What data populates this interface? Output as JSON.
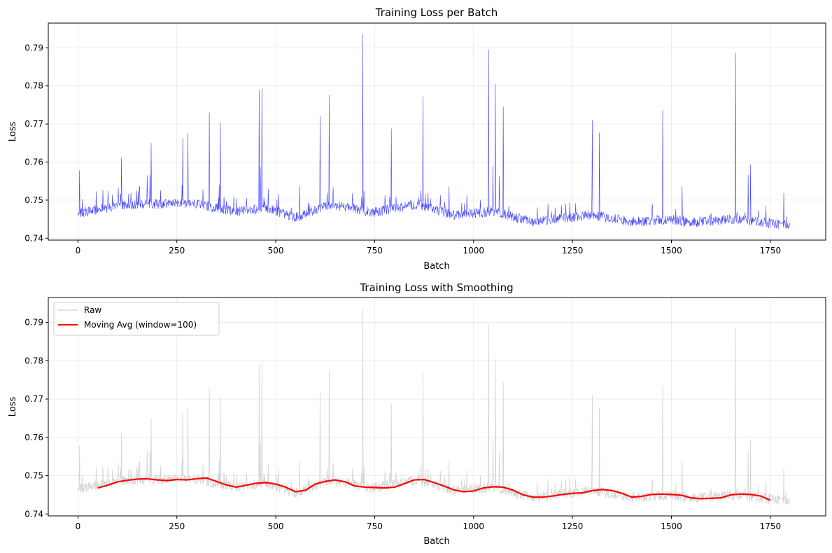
{
  "chart_data": [
    {
      "type": "line",
      "title": "Training Loss per Batch",
      "xlabel": "Batch",
      "ylabel": "Loss",
      "xlim": [
        -75,
        1890
      ],
      "ylim": [
        0.7395,
        0.7965
      ],
      "xticks": [
        0,
        250,
        500,
        750,
        1000,
        1250,
        1500,
        1750
      ],
      "yticks": [
        0.74,
        0.75,
        0.76,
        0.77,
        0.78,
        0.79
      ],
      "grid": true,
      "legend": null,
      "series": [
        {
          "role": "raw",
          "color": "#0000ff",
          "n_points": 1800,
          "baseline_trend": [
            [
              0,
              0.7465
            ],
            [
              100,
              0.7485
            ],
            [
              150,
              0.749
            ],
            [
              300,
              0.749
            ],
            [
              400,
              0.747
            ],
            [
              470,
              0.748
            ],
            [
              550,
              0.7455
            ],
            [
              640,
              0.7488
            ],
            [
              750,
              0.7468
            ],
            [
              860,
              0.749
            ],
            [
              950,
              0.746
            ],
            [
              1050,
              0.747
            ],
            [
              1150,
              0.7442
            ],
            [
              1300,
              0.7462
            ],
            [
              1400,
              0.7442
            ],
            [
              1500,
              0.745
            ],
            [
              1550,
              0.744
            ],
            [
              1660,
              0.745
            ],
            [
              1800,
              0.7433
            ]
          ],
          "peaks": [
            [
              110,
              0.7612
            ],
            [
              185,
              0.765
            ],
            [
              265,
              0.7663
            ],
            [
              278,
              0.7675
            ],
            [
              332,
              0.773
            ],
            [
              360,
              0.7702
            ],
            [
              458,
              0.7789
            ],
            [
              465,
              0.7793
            ],
            [
              612,
              0.772
            ],
            [
              635,
              0.7775
            ],
            [
              720,
              0.7937
            ],
            [
              792,
              0.7688
            ],
            [
              872,
              0.7772
            ],
            [
              1038,
              0.7895
            ],
            [
              1055,
              0.7805
            ],
            [
              1075,
              0.7745
            ],
            [
              1300,
              0.771
            ],
            [
              1318,
              0.7677
            ],
            [
              1478,
              0.7735
            ],
            [
              1662,
              0.7887
            ],
            [
              1700,
              0.7593
            ]
          ]
        }
      ]
    },
    {
      "type": "line",
      "title": "Training Loss with Smoothing",
      "xlabel": "Batch",
      "ylabel": "Loss",
      "xlim": [
        -75,
        1890
      ],
      "ylim": [
        0.7395,
        0.7965
      ],
      "xticks": [
        0,
        250,
        500,
        750,
        1000,
        1250,
        1500,
        1750
      ],
      "yticks": [
        0.74,
        0.75,
        0.76,
        0.77,
        0.78,
        0.79
      ],
      "grid": true,
      "legend": "upper left",
      "series": [
        {
          "name": "Raw",
          "role": "raw",
          "color": "#c8c8c8"
        },
        {
          "name": "Moving Avg (window=100)",
          "role": "moving_avg",
          "color": "#ff0000",
          "x": [
            50,
            75,
            100,
            125,
            150,
            175,
            200,
            225,
            250,
            275,
            300,
            325,
            350,
            375,
            400,
            425,
            450,
            475,
            500,
            525,
            550,
            575,
            600,
            625,
            650,
            675,
            700,
            725,
            750,
            775,
            800,
            825,
            850,
            875,
            900,
            925,
            950,
            975,
            1000,
            1025,
            1050,
            1075,
            1100,
            1125,
            1150,
            1175,
            1200,
            1225,
            1250,
            1275,
            1300,
            1325,
            1350,
            1375,
            1400,
            1425,
            1450,
            1475,
            1500,
            1525,
            1550,
            1575,
            1600,
            1625,
            1650,
            1675,
            1700,
            1725,
            1750
          ],
          "y": [
            0.7468,
            0.7475,
            0.7484,
            0.7488,
            0.7491,
            0.7492,
            0.7489,
            0.7487,
            0.749,
            0.7489,
            0.7492,
            0.7494,
            0.7485,
            0.7476,
            0.747,
            0.7475,
            0.748,
            0.7482,
            0.7478,
            0.747,
            0.7458,
            0.7462,
            0.7478,
            0.7485,
            0.7489,
            0.7484,
            0.7473,
            0.747,
            0.7469,
            0.7468,
            0.747,
            0.7479,
            0.7489,
            0.749,
            0.7482,
            0.7473,
            0.7463,
            0.7458,
            0.746,
            0.7468,
            0.7471,
            0.747,
            0.7462,
            0.745,
            0.7444,
            0.7444,
            0.7447,
            0.7451,
            0.7454,
            0.7455,
            0.7461,
            0.7464,
            0.7461,
            0.7454,
            0.7444,
            0.7446,
            0.7451,
            0.7452,
            0.7451,
            0.7449,
            0.7442,
            0.744,
            0.7441,
            0.7442,
            0.745,
            0.7452,
            0.7451,
            0.7447,
            0.7436
          ]
        }
      ]
    }
  ]
}
